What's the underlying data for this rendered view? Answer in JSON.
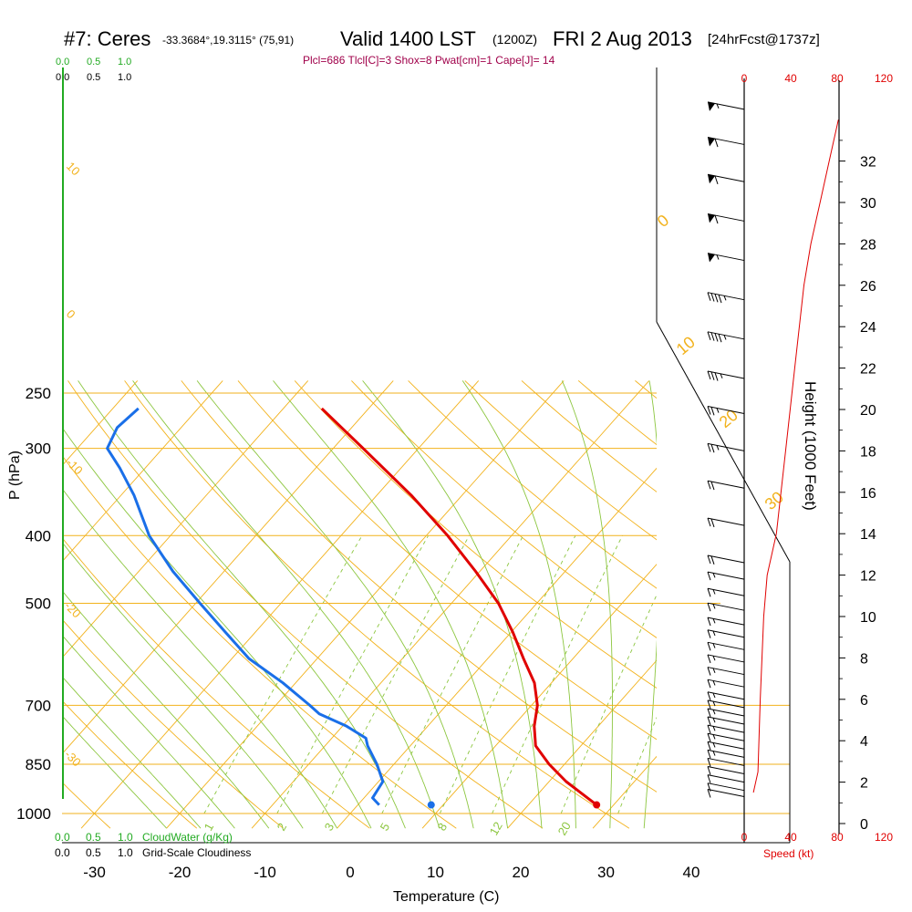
{
  "header": {
    "station": "#7: Ceres",
    "coords": "-33.3684°,19.3115° (75,91)",
    "valid": "Valid 1400 LST",
    "zulu": "(1200Z)",
    "date": "FRI 2 Aug 2013",
    "forecast": "[24hrFcst@1737z]"
  },
  "indices": "Plcl=686 Tlcl[C]=3 Shox=8 Pwat[cm]=1 Cape[J]= 14",
  "labels": {
    "yaxis": "P (hPa)",
    "xaxis": "Temperature (C)",
    "height": "Height (1000 Feet)",
    "speed": "Speed (kt)",
    "cloudwater": "CloudWater (g/Kg)",
    "cloudiness": "Grid-Scale Cloudiness",
    "cw_ticks": [
      "0.0",
      "0.5",
      "1.0"
    ],
    "cl_ticks": [
      "0.0",
      "0.5",
      "1.0"
    ],
    "top_cw_ticks": [
      "0.0",
      "0.5",
      "1.0"
    ],
    "top_cl_ticks": [
      "0.0",
      "0.5",
      "1.0"
    ]
  },
  "colors": {
    "temperature": "#e00000",
    "dewpoint": "#1a6fe8",
    "isotherm": "#f2b21c",
    "dry_adiabat": "#f2b21c",
    "moist_adiabat": "#8cc63f",
    "mixing_ratio": "#8cc63f",
    "header_red": "#a0004a",
    "cloud_green": "#22aa22",
    "speed_red": "#e00000"
  },
  "chart_data": {
    "type": "skew-t",
    "pressure_ticks": [
      250,
      300,
      400,
      500,
      700,
      850,
      1000
    ],
    "temperature_ticks": [
      -30,
      -20,
      -10,
      0,
      10,
      20,
      30,
      40
    ],
    "height_ticks_kft": [
      0,
      2,
      4,
      6,
      8,
      10,
      12,
      14,
      16,
      18,
      20,
      22,
      24,
      26,
      28,
      30,
      32
    ],
    "speed_ticks_kt": [
      0,
      40,
      80,
      120
    ],
    "dry_adiabat_labels": [
      "10",
      "0",
      "-10",
      "-20",
      "-30"
    ],
    "moist_adiabat_labels": [
      "0",
      "10",
      "20",
      "30"
    ],
    "mixing_ratio_labels": [
      "1",
      "2",
      "3",
      "5",
      "8",
      "12",
      "20"
    ],
    "temperature_profile": [
      {
        "p": 972,
        "t": 28.0
      },
      {
        "p": 900,
        "t": 22.0
      },
      {
        "p": 850,
        "t": 18.2
      },
      {
        "p": 800,
        "t": 14.7
      },
      {
        "p": 750,
        "t": 12.5
      },
      {
        "p": 700,
        "t": 10.7
      },
      {
        "p": 650,
        "t": 8.0
      },
      {
        "p": 600,
        "t": 4.2
      },
      {
        "p": 550,
        "t": 0.2
      },
      {
        "p": 500,
        "t": -4.5
      },
      {
        "p": 450,
        "t": -10.5
      },
      {
        "p": 400,
        "t": -17.5
      },
      {
        "p": 350,
        "t": -26.0
      },
      {
        "p": 300,
        "t": -36.5
      },
      {
        "p": 263,
        "t": -45.5
      }
    ],
    "dewpoint_profile": [
      {
        "p": 972,
        "t": 2.5
      },
      {
        "p": 950,
        "t": 1.0
      },
      {
        "p": 900,
        "t": 0.5
      },
      {
        "p": 850,
        "t": -2.0
      },
      {
        "p": 800,
        "t": -5.0
      },
      {
        "p": 780,
        "t": -6.0
      },
      {
        "p": 750,
        "t": -9.5
      },
      {
        "p": 720,
        "t": -14.0
      },
      {
        "p": 700,
        "t": -16.0
      },
      {
        "p": 650,
        "t": -21.5
      },
      {
        "p": 600,
        "t": -28.0
      },
      {
        "p": 550,
        "t": -33.5
      },
      {
        "p": 500,
        "t": -39.5
      },
      {
        "p": 450,
        "t": -46.0
      },
      {
        "p": 400,
        "t": -52.5
      },
      {
        "p": 350,
        "t": -58.5
      },
      {
        "p": 320,
        "t": -63.0
      },
      {
        "p": 300,
        "t": -66.5
      },
      {
        "p": 280,
        "t": -67.5
      },
      {
        "p": 263,
        "t": -67.0
      }
    ],
    "parcel_points": {
      "temperature": {
        "p": 972,
        "t": 28.0
      },
      "dewpoint": {
        "p": 972,
        "t": 8.6
      }
    },
    "wind_speed_profile": [
      {
        "h": 1.5,
        "kt": 8
      },
      {
        "h": 2.5,
        "kt": 12
      },
      {
        "h": 6,
        "kt": 14
      },
      {
        "h": 10,
        "kt": 17
      },
      {
        "h": 12,
        "kt": 20
      },
      {
        "h": 14,
        "kt": 28
      },
      {
        "h": 18,
        "kt": 36
      },
      {
        "h": 22,
        "kt": 44
      },
      {
        "h": 26,
        "kt": 52
      },
      {
        "h": 28,
        "kt": 58
      },
      {
        "h": 30,
        "kt": 66
      },
      {
        "h": 32,
        "kt": 74
      },
      {
        "h": 34,
        "kt": 82
      }
    ],
    "wind_barbs": [
      {
        "h": 1.3,
        "kt": 10
      },
      {
        "h": 1.6,
        "kt": 10
      },
      {
        "h": 2.0,
        "kt": 10
      },
      {
        "h": 2.4,
        "kt": 10
      },
      {
        "h": 2.8,
        "kt": 10
      },
      {
        "h": 3.2,
        "kt": 15
      },
      {
        "h": 3.6,
        "kt": 15
      },
      {
        "h": 4.0,
        "kt": 15
      },
      {
        "h": 4.4,
        "kt": 15
      },
      {
        "h": 4.8,
        "kt": 15
      },
      {
        "h": 5.2,
        "kt": 15
      },
      {
        "h": 5.6,
        "kt": 15
      },
      {
        "h": 6.0,
        "kt": 15
      },
      {
        "h": 6.6,
        "kt": 15
      },
      {
        "h": 7.2,
        "kt": 15
      },
      {
        "h": 7.8,
        "kt": 15
      },
      {
        "h": 8.4,
        "kt": 15
      },
      {
        "h": 9.0,
        "kt": 15
      },
      {
        "h": 9.6,
        "kt": 15
      },
      {
        "h": 10.3,
        "kt": 15
      },
      {
        "h": 11.0,
        "kt": 15
      },
      {
        "h": 11.8,
        "kt": 15
      },
      {
        "h": 12.6,
        "kt": 20
      },
      {
        "h": 14.4,
        "kt": 20
      },
      {
        "h": 16.2,
        "kt": 20
      },
      {
        "h": 18.0,
        "kt": 25
      },
      {
        "h": 19.8,
        "kt": 25
      },
      {
        "h": 21.5,
        "kt": 35
      },
      {
        "h": 23.4,
        "kt": 45
      },
      {
        "h": 25.3,
        "kt": 45
      },
      {
        "h": 27.2,
        "kt": 55
      },
      {
        "h": 29.1,
        "kt": 60
      },
      {
        "h": 31.0,
        "kt": 60
      },
      {
        "h": 32.8,
        "kt": 60
      },
      {
        "h": 34.5,
        "kt": 55
      }
    ]
  }
}
